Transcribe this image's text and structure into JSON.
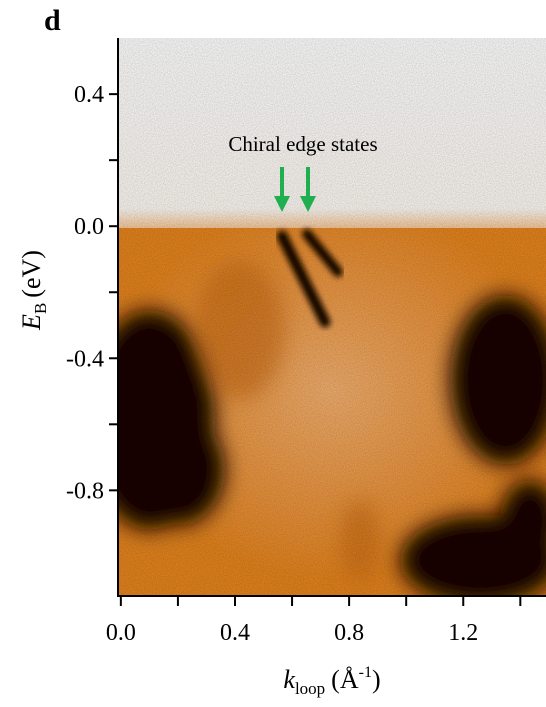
{
  "chart_data": {
    "type": "heatmap",
    "panel_label": "d",
    "annotation": "Chiral edge states",
    "xlabel": {
      "symbol": "k",
      "subscript": "loop",
      "unit_open": "(Å",
      "superscript": "-1",
      "unit_close": ")"
    },
    "ylabel": {
      "symbol": "E",
      "subscript": "B",
      "unit": "(eV)"
    },
    "xlim": [
      -0.01,
      1.49
    ],
    "ylim": [
      -1.12,
      0.57
    ],
    "xticks": [
      {
        "value": 0,
        "label": "0.0"
      },
      0.4,
      0.8,
      1.2
    ],
    "yticks": [
      0.4,
      {
        "value": 0,
        "label": "0.0"
      },
      -0.4,
      -0.8
    ]
  }
}
